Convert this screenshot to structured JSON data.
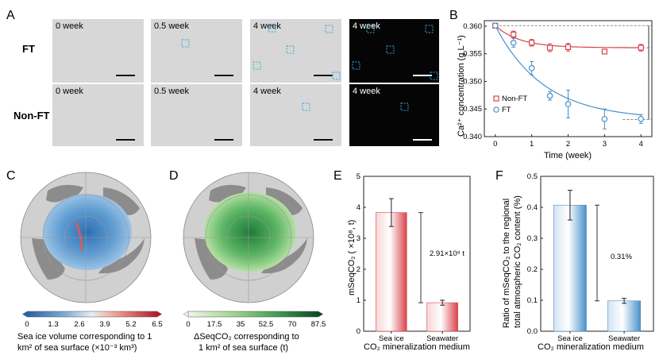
{
  "figure": {
    "panel_letters": [
      "A",
      "B",
      "C",
      "D",
      "E",
      "F"
    ]
  },
  "panel_a": {
    "rows": [
      "FT",
      "Non-FT"
    ],
    "tiles_ft": [
      "0 week",
      "0.5 week",
      "4 week",
      "4 week"
    ],
    "tiles_nonft": [
      "0 week",
      "0.5 week",
      "4 week",
      "4 week"
    ]
  },
  "panel_c": {
    "colorbar_ticks": [
      "0",
      "1.3",
      "2.6",
      "3.9",
      "5.2",
      "6.5"
    ],
    "caption_line1": "Sea ice volume corresponding to 1",
    "caption_line2": "km² of sea surface (×10⁻³ km³)"
  },
  "panel_d": {
    "colorbar_ticks": [
      "0",
      "17.5",
      "35",
      "52.5",
      "70",
      "87.5"
    ],
    "caption_line1": "ΔSeqCO₂ corresponding to",
    "caption_line2": "1 km² of sea surface (t)"
  },
  "colors": {
    "ft_red": "#d9434b",
    "nonft_blue": "#4a90c8",
    "tile_gray": "#d7d7d7",
    "tile_dark": "#050505",
    "marker_cyan": "#3aa6dd"
  },
  "chart_data": [
    {
      "id": "B",
      "type": "scatter",
      "title": "",
      "xlabel": "Time (week)",
      "ylabel": "Ca²⁺ concentration (g L⁻¹)",
      "xlim": [
        -0.3,
        4.3
      ],
      "ylim": [
        0.34,
        0.361
      ],
      "xticks": [
        "0",
        "1",
        "2",
        "3",
        "4"
      ],
      "yticks": [
        "0.340",
        "0.345",
        "0.350",
        "0.355",
        "0.360"
      ],
      "legend_position": "center-left",
      "series": [
        {
          "name": "Non-FT",
          "color": "#d9434b",
          "x": [
            0,
            0.5,
            1,
            1.5,
            2,
            3,
            4
          ],
          "y": [
            0.3601,
            0.3585,
            0.357,
            0.3561,
            0.3562,
            0.3554,
            0.3561
          ],
          "err": [
            0.0003,
            0.0006,
            0.0006,
            0.0007,
            0.0007,
            0.0004,
            0.0006
          ],
          "fit": [
            0.3601,
            0.3561,
            0.3561
          ]
        },
        {
          "name": "FT",
          "color": "#4a90c8",
          "x": [
            0,
            0.5,
            1,
            1.5,
            2,
            3,
            4
          ],
          "y": [
            0.3601,
            0.357,
            0.3524,
            0.3474,
            0.3459,
            0.3432,
            0.3432
          ],
          "err": [
            0.0003,
            0.0008,
            0.0012,
            0.0008,
            0.0025,
            0.0018,
            0.0008
          ],
          "fit": [
            0.3601,
            0.3431,
            0.75
          ]
        }
      ]
    },
    {
      "id": "E",
      "type": "bar",
      "ylabel": "mSeqCO₂ ( ×10⁸, t)",
      "xlabel": "CO₂ mineralization medium",
      "categories": [
        "Sea ice",
        "Seawater"
      ],
      "values": [
        3.83,
        0.92
      ],
      "errors": [
        0.45,
        0.08
      ],
      "ylim": [
        0,
        5
      ],
      "yticks": [
        "0",
        "1",
        "2",
        "3",
        "4",
        "5"
      ],
      "annotation": "2.91×10⁸ t",
      "bar_color": "#d9434b"
    },
    {
      "id": "F",
      "type": "bar",
      "ylabel_line1": "Ratio of mSeqCO₂ to the regional",
      "ylabel_line2": "total atmospheric CO₂ content (%)",
      "xlabel": "CO₂ mineralization medium",
      "categories": [
        "Sea ice",
        "Seawater"
      ],
      "values": [
        0.407,
        0.098
      ],
      "errors": [
        0.048,
        0.008
      ],
      "ylim": [
        0,
        0.5
      ],
      "yticks": [
        "0.0",
        "0.1",
        "0.2",
        "0.3",
        "0.4",
        "0.5"
      ],
      "annotation": "0.31%",
      "bar_color": "#4a90c8"
    }
  ]
}
